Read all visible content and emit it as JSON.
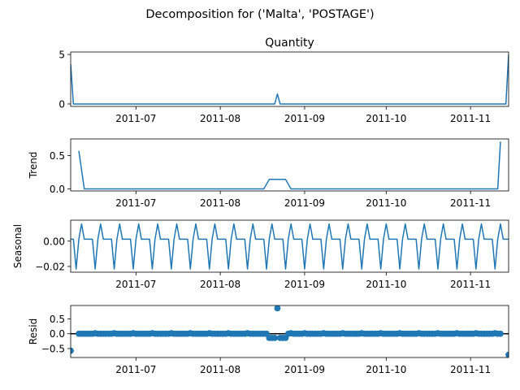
{
  "figure": {
    "suptitle": "Decomposition for ('Malta', 'POSTAGE')",
    "x_start": "2011-06-07",
    "x_end": "2011-11-15",
    "x_ticks": [
      {
        "date": "2011-07-01",
        "label": "2011-07"
      },
      {
        "date": "2011-08-01",
        "label": "2011-08"
      },
      {
        "date": "2011-09-01",
        "label": "2011-09"
      },
      {
        "date": "2011-10-01",
        "label": "2011-10"
      },
      {
        "date": "2011-11-01",
        "label": "2011-11"
      }
    ],
    "line_color": "#1f77b4"
  },
  "chart_data": [
    {
      "type": "line",
      "title": "Quantity",
      "ylabel": "",
      "ylim": [
        -0.25,
        5.25
      ],
      "y_ticks": [
        {
          "value": 0,
          "label": "0"
        },
        {
          "value": 5,
          "label": "5"
        }
      ],
      "points": [
        [
          "2011-06-07",
          4.0
        ],
        [
          "2011-06-08",
          0
        ],
        [
          "2011-08-21",
          0
        ],
        [
          "2011-08-22",
          1
        ],
        [
          "2011-08-23",
          0
        ],
        [
          "2011-11-14",
          0
        ],
        [
          "2011-11-15",
          5
        ]
      ]
    },
    {
      "type": "line",
      "title": "",
      "ylabel": "Trend",
      "ylim": [
        -0.03,
        0.75
      ],
      "y_ticks": [
        {
          "value": 0,
          "label": "0.0"
        },
        {
          "value": 0.5,
          "label": "0.5"
        }
      ],
      "points": [
        [
          "2011-06-10",
          0.57
        ],
        [
          "2011-06-12",
          0
        ],
        [
          "2011-08-17",
          0
        ],
        [
          "2011-08-19",
          0.143
        ],
        [
          "2011-08-25",
          0.143
        ],
        [
          "2011-08-27",
          0
        ],
        [
          "2011-11-11",
          0
        ],
        [
          "2011-11-12",
          0.71
        ]
      ]
    },
    {
      "type": "line",
      "title": "",
      "ylabel": "Seasonal",
      "ylim": [
        -0.0245,
        0.0165
      ],
      "y_ticks": [
        {
          "value": 0,
          "label": "0.00"
        },
        {
          "value": -0.02,
          "label": "−0.02"
        }
      ],
      "period_days": 7,
      "start": "2011-06-07",
      "end": "2011-11-15",
      "pattern": [
        0.0015,
        0.0015,
        -0.022,
        0.0015,
        0.0135,
        0.0015,
        0.0015
      ]
    },
    {
      "type": "scatter",
      "title": "",
      "ylabel": "Resid",
      "ylim": [
        -0.8,
        0.95
      ],
      "y_ticks": [
        {
          "value": 0.5,
          "label": "0.5"
        },
        {
          "value": 0,
          "label": "0.0"
        },
        {
          "value": -0.5,
          "label": "−0.5"
        }
      ],
      "baseline": 0,
      "start": "2011-06-10",
      "end": "2011-11-12",
      "default": -0.001,
      "overrides": [
        [
          "2011-06-07",
          -0.57
        ],
        [
          "2011-06-16",
          0.015
        ],
        [
          "2011-06-23",
          0.015
        ],
        [
          "2011-06-30",
          0.015
        ],
        [
          "2011-07-07",
          0.015
        ],
        [
          "2011-07-14",
          0.015
        ],
        [
          "2011-07-21",
          0.015
        ],
        [
          "2011-07-28",
          0.015
        ],
        [
          "2011-08-04",
          0.015
        ],
        [
          "2011-08-11",
          0.015
        ],
        [
          "2011-08-19",
          -0.14
        ],
        [
          "2011-08-20",
          -0.14
        ],
        [
          "2011-08-21",
          -0.14
        ],
        [
          "2011-08-22",
          0.857
        ],
        [
          "2011-08-23",
          -0.14
        ],
        [
          "2011-08-24",
          -0.14
        ],
        [
          "2011-08-25",
          -0.14
        ],
        [
          "2011-08-27",
          0.015
        ],
        [
          "2011-09-01",
          0.015
        ],
        [
          "2011-09-08",
          0.015
        ],
        [
          "2011-09-15",
          0.015
        ],
        [
          "2011-09-22",
          0.015
        ],
        [
          "2011-09-29",
          0.015
        ],
        [
          "2011-10-06",
          0.015
        ],
        [
          "2011-10-13",
          0.015
        ],
        [
          "2011-10-20",
          0.015
        ],
        [
          "2011-10-27",
          0.015
        ],
        [
          "2011-11-03",
          0.015
        ],
        [
          "2011-11-10",
          0.015
        ],
        [
          "2011-11-15",
          -0.71
        ]
      ]
    }
  ]
}
